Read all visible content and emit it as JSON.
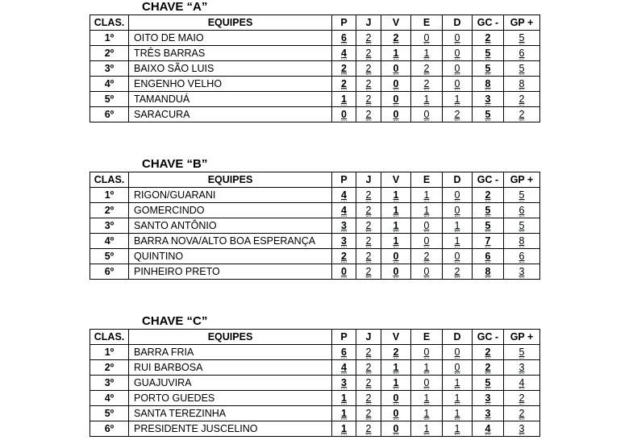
{
  "headers": [
    "CLAS.",
    "EQUIPES",
    "P",
    "J",
    "V",
    "E",
    "D",
    "GC -",
    "GP +"
  ],
  "groups": [
    {
      "title": "CHAVE “A”",
      "rows": [
        [
          "1º",
          "OITO DE MAIO",
          "6",
          "2",
          "2",
          "0",
          "0",
          "2",
          "5"
        ],
        [
          "2º",
          "TRÊS BARRAS",
          "4",
          "2",
          "1",
          "1",
          "0",
          "5",
          "6"
        ],
        [
          "3º",
          "BAIXO SÃO LUIS",
          "2",
          "2",
          "0",
          "2",
          "0",
          "5",
          "5"
        ],
        [
          "4º",
          "ENGENHO VELHO",
          "2",
          "2",
          "0",
          "2",
          "0",
          "8",
          "8"
        ],
        [
          "5º",
          "TAMANDUÁ",
          "1",
          "2",
          "0",
          "1",
          "1",
          "3",
          "2"
        ],
        [
          "6º",
          "SARACURA",
          "0",
          "2",
          "0",
          "0",
          "2",
          "5",
          "2"
        ]
      ]
    },
    {
      "title": "CHAVE “B”",
      "rows": [
        [
          "1º",
          "RIGON/GUARANI",
          "4",
          "2",
          "1",
          "1",
          "0",
          "2",
          "5"
        ],
        [
          "2º",
          "GOMERCINDO",
          "4",
          "2",
          "1",
          "1",
          "0",
          "5",
          "6"
        ],
        [
          "3º",
          "SANTO ANTÔNIO",
          "3",
          "2",
          "1",
          "0",
          "1",
          "5",
          "5"
        ],
        [
          "4º",
          "BARRA NOVA/ALTO BOA ESPERANÇA",
          "3",
          "2",
          "1",
          "0",
          "1",
          "7",
          "8"
        ],
        [
          "5º",
          "QUINTINO",
          "2",
          "2",
          "0",
          "2",
          "0",
          "6",
          "6"
        ],
        [
          "6º",
          "PINHEIRO PRETO",
          "0",
          "2",
          "0",
          "0",
          "2",
          "8",
          "3"
        ]
      ]
    },
    {
      "title": "CHAVE “C”",
      "rows": [
        [
          "1º",
          "BARRA FRIA",
          "6",
          "2",
          "2",
          "0",
          "0",
          "2",
          "5"
        ],
        [
          "2º",
          "RUI BARBOSA",
          "4",
          "2",
          "1",
          "1",
          "0",
          "2",
          "3"
        ],
        [
          "3º",
          "GUAJUVIRA",
          "3",
          "2",
          "1",
          "0",
          "1",
          "5",
          "4"
        ],
        [
          "4º",
          "PORTO GUEDES",
          "1",
          "2",
          "0",
          "1",
          "1",
          "3",
          "2"
        ],
        [
          "5º",
          "SANTA TEREZINHA",
          "1",
          "2",
          "0",
          "1",
          "1",
          "3",
          "2"
        ],
        [
          "6º",
          "PRESIDENTE JUSCELINO",
          "1",
          "2",
          "0",
          "1",
          "1",
          "4",
          "3"
        ]
      ]
    }
  ]
}
